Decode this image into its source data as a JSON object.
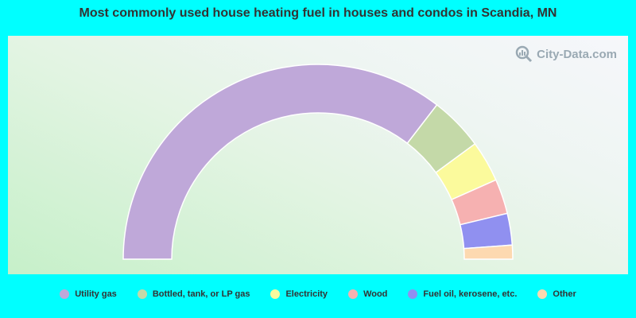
{
  "watermark": "City-Data.com",
  "chart_data": {
    "type": "pie",
    "variant": "half-donut",
    "title": "Most commonly used house heating fuel in houses and condos in Scandia, MN",
    "categories": [
      "Utility gas",
      "Bottled, tank, or LP gas",
      "Electricity",
      "Wood",
      "Fuel oil, kerosene, etc.",
      "Other"
    ],
    "values": [
      67.5,
      8.5,
      6.5,
      5.5,
      5.0,
      2.2
    ],
    "colors": [
      "#bfa8d9",
      "#c4d9a8",
      "#fbfa9c",
      "#f6b1b1",
      "#9090f0",
      "#fdd9b0"
    ],
    "legend_position": "bottom"
  }
}
